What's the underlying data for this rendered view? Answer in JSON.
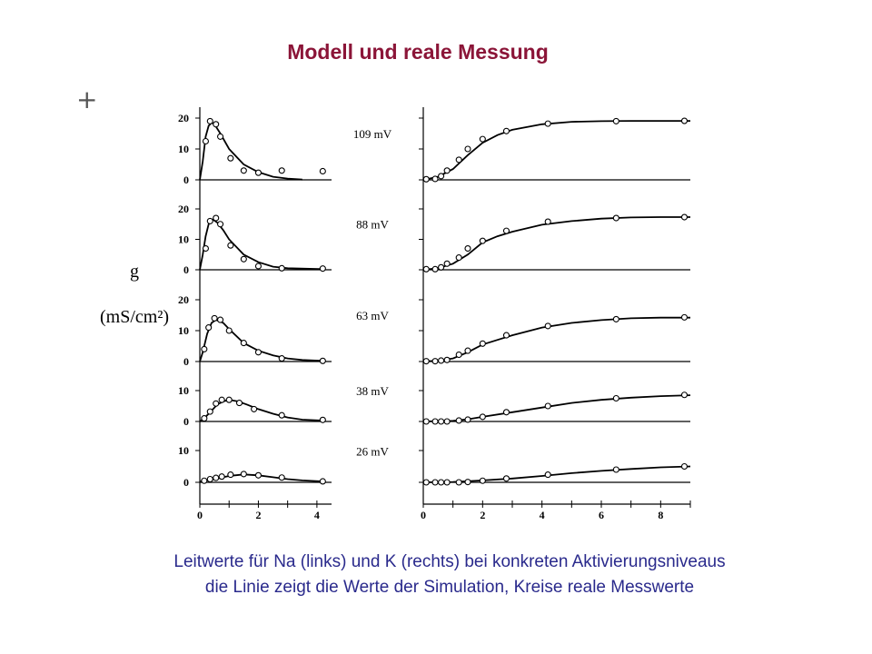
{
  "title": "Modell und reale Messung",
  "plus_marker": "+",
  "caption": {
    "line1": "Leitwerte für Na (links) und K (rechts) bei konkreten Aktivierungsniveaus",
    "line2": "die Linie zeigt die Werte der Simulation, Kreise reale Messwerte"
  },
  "chart_data": {
    "type": "line",
    "ylabel_line1": "g",
    "ylabel_line2": "(mS/cm²)",
    "left_panel": {
      "x_ticks": [
        "0",
        "2",
        "4"
      ],
      "xlim": [
        0,
        4.5
      ]
    },
    "right_panel": {
      "x_ticks": [
        "0",
        "2",
        "4",
        "6",
        "8"
      ],
      "xlim": [
        0,
        9
      ]
    },
    "rows": [
      {
        "voltage_label": "109 mV",
        "y_ticks": [
          "20",
          "10",
          "0"
        ],
        "ylim": [
          0,
          20
        ],
        "na_curve": [
          [
            0,
            0
          ],
          [
            0.1,
            6
          ],
          [
            0.2,
            14
          ],
          [
            0.3,
            17.5
          ],
          [
            0.4,
            18.5
          ],
          [
            0.5,
            18
          ],
          [
            0.7,
            15
          ],
          [
            1,
            10
          ],
          [
            1.5,
            5
          ],
          [
            2,
            2.5
          ],
          [
            2.5,
            1
          ],
          [
            3,
            0.4
          ],
          [
            3.5,
            0.1
          ]
        ],
        "na_points": [
          [
            0.2,
            12.5
          ],
          [
            0.35,
            19
          ],
          [
            0.55,
            18
          ],
          [
            0.7,
            14
          ],
          [
            1.05,
            7
          ],
          [
            1.5,
            3
          ],
          [
            2,
            2.3
          ],
          [
            2.8,
            3
          ],
          [
            4.2,
            2.8
          ]
        ],
        "k_curve": [
          [
            0,
            0
          ],
          [
            0.5,
            1
          ],
          [
            1,
            3.5
          ],
          [
            1.5,
            8
          ],
          [
            2,
            12
          ],
          [
            2.5,
            14.5
          ],
          [
            3,
            16.2
          ],
          [
            4,
            18
          ],
          [
            5,
            18.8
          ],
          [
            6,
            19
          ],
          [
            7,
            19.1
          ],
          [
            8,
            19.1
          ],
          [
            9,
            19.1
          ]
        ],
        "k_points": [
          [
            0.1,
            0.2
          ],
          [
            0.4,
            0.3
          ],
          [
            0.6,
            1.2
          ],
          [
            0.8,
            3
          ],
          [
            1.2,
            6.5
          ],
          [
            1.5,
            10
          ],
          [
            2,
            13.2
          ],
          [
            2.8,
            15.8
          ],
          [
            4.2,
            18.2
          ],
          [
            6.5,
            19
          ],
          [
            8.8,
            19.1
          ]
        ]
      },
      {
        "voltage_label": "88 mV",
        "y_ticks": [
          "20",
          "10",
          "0"
        ],
        "ylim": [
          0,
          20
        ],
        "na_curve": [
          [
            0,
            0
          ],
          [
            0.1,
            5
          ],
          [
            0.2,
            11
          ],
          [
            0.3,
            15
          ],
          [
            0.45,
            16.5
          ],
          [
            0.6,
            15.5
          ],
          [
            0.8,
            13
          ],
          [
            1,
            10
          ],
          [
            1.5,
            5
          ],
          [
            2,
            2.5
          ],
          [
            2.5,
            1
          ],
          [
            3,
            0.5
          ],
          [
            4.2,
            0.2
          ]
        ],
        "na_points": [
          [
            0.2,
            7
          ],
          [
            0.35,
            16
          ],
          [
            0.55,
            17
          ],
          [
            0.7,
            15
          ],
          [
            1.05,
            8
          ],
          [
            1.5,
            3.5
          ],
          [
            2,
            1.2
          ],
          [
            2.8,
            0.5
          ],
          [
            4.2,
            0.4
          ]
        ],
        "k_curve": [
          [
            0,
            0
          ],
          [
            0.5,
            0.5
          ],
          [
            1,
            2
          ],
          [
            1.5,
            5
          ],
          [
            2,
            9
          ],
          [
            2.5,
            11
          ],
          [
            3,
            12.5
          ],
          [
            4,
            14.8
          ],
          [
            5,
            16
          ],
          [
            6,
            16.8
          ],
          [
            7,
            17.2
          ],
          [
            8,
            17.3
          ],
          [
            9,
            17.3
          ]
        ],
        "k_points": [
          [
            0.1,
            0.2
          ],
          [
            0.4,
            0.2
          ],
          [
            0.6,
            0.8
          ],
          [
            0.8,
            2
          ],
          [
            1.2,
            4
          ],
          [
            1.5,
            7
          ],
          [
            2,
            9.5
          ],
          [
            2.8,
            12.8
          ],
          [
            4.2,
            15.8
          ],
          [
            6.5,
            17
          ],
          [
            8.8,
            17.3
          ]
        ]
      },
      {
        "voltage_label": "63 mV",
        "y_ticks": [
          "20",
          "10",
          "0"
        ],
        "ylim": [
          0,
          20
        ],
        "na_curve": [
          [
            0,
            0
          ],
          [
            0.1,
            3
          ],
          [
            0.25,
            9
          ],
          [
            0.4,
            12.5
          ],
          [
            0.55,
            13.5
          ],
          [
            0.8,
            12.5
          ],
          [
            1,
            10.5
          ],
          [
            1.5,
            6
          ],
          [
            2,
            3.5
          ],
          [
            2.5,
            2
          ],
          [
            3,
            1
          ],
          [
            3.5,
            0.5
          ],
          [
            4.2,
            0.2
          ]
        ],
        "na_points": [
          [
            0.15,
            4
          ],
          [
            0.3,
            11
          ],
          [
            0.5,
            14
          ],
          [
            0.7,
            13.5
          ],
          [
            1,
            10
          ],
          [
            1.5,
            6
          ],
          [
            2,
            3
          ],
          [
            2.8,
            1
          ],
          [
            4.2,
            0.2
          ]
        ],
        "k_curve": [
          [
            0,
            0
          ],
          [
            0.5,
            0.3
          ],
          [
            1,
            1
          ],
          [
            1.5,
            3
          ],
          [
            2,
            5.5
          ],
          [
            2.5,
            7
          ],
          [
            3,
            8.5
          ],
          [
            4,
            11
          ],
          [
            5,
            12.5
          ],
          [
            6,
            13.4
          ],
          [
            7,
            14
          ],
          [
            8,
            14.2
          ],
          [
            9,
            14.2
          ]
        ],
        "k_points": [
          [
            0.1,
            0.1
          ],
          [
            0.4,
            0.1
          ],
          [
            0.6,
            0.3
          ],
          [
            0.8,
            0.5
          ],
          [
            1.2,
            2.2
          ],
          [
            1.5,
            3.5
          ],
          [
            2,
            5.8
          ],
          [
            2.8,
            8.5
          ],
          [
            4.2,
            11.5
          ],
          [
            6.5,
            13.7
          ],
          [
            8.8,
            14.3
          ]
        ]
      },
      {
        "voltage_label": "38 mV",
        "y_ticks": [
          "10",
          "0"
        ],
        "ylim": [
          0,
          10
        ],
        "na_curve": [
          [
            0,
            0
          ],
          [
            0.2,
            1.5
          ],
          [
            0.4,
            3.5
          ],
          [
            0.6,
            5.5
          ],
          [
            0.8,
            6.5
          ],
          [
            1,
            7
          ],
          [
            1.3,
            6.5
          ],
          [
            1.6,
            5.5
          ],
          [
            2,
            4
          ],
          [
            2.5,
            2.5
          ],
          [
            3,
            1.3
          ],
          [
            3.5,
            0.6
          ],
          [
            4.2,
            0.3
          ]
        ],
        "na_points": [
          [
            0.15,
            1
          ],
          [
            0.35,
            3.2
          ],
          [
            0.55,
            5.8
          ],
          [
            0.75,
            7
          ],
          [
            1,
            7
          ],
          [
            1.35,
            6
          ],
          [
            1.85,
            4
          ],
          [
            2.8,
            2
          ],
          [
            4.2,
            0.5
          ]
        ],
        "k_curve": [
          [
            0,
            0
          ],
          [
            1,
            0.2
          ],
          [
            1.5,
            0.7
          ],
          [
            2,
            1.5
          ],
          [
            3,
            3
          ],
          [
            4,
            4.5
          ],
          [
            5,
            6
          ],
          [
            6,
            7
          ],
          [
            7,
            7.7
          ],
          [
            8,
            8.2
          ],
          [
            9,
            8.5
          ]
        ],
        "k_points": [
          [
            0.1,
            0
          ],
          [
            0.4,
            0
          ],
          [
            0.6,
            0
          ],
          [
            0.8,
            0
          ],
          [
            1.2,
            0.3
          ],
          [
            1.5,
            0.6
          ],
          [
            2,
            1.5
          ],
          [
            2.8,
            3
          ],
          [
            4.2,
            5
          ],
          [
            6.5,
            7.5
          ],
          [
            8.8,
            8.6
          ]
        ]
      },
      {
        "voltage_label": "26 mV",
        "y_ticks": [
          "10",
          "0"
        ],
        "ylim": [
          0,
          10
        ],
        "na_curve": [
          [
            0,
            0.2
          ],
          [
            0.5,
            1
          ],
          [
            1,
            2
          ],
          [
            1.5,
            2.5
          ],
          [
            2,
            2.2
          ],
          [
            2.5,
            1.6
          ],
          [
            3,
            1
          ],
          [
            3.5,
            0.6
          ],
          [
            4.2,
            0.3
          ]
        ],
        "na_points": [
          [
            0.15,
            0.5
          ],
          [
            0.35,
            1
          ],
          [
            0.55,
            1.4
          ],
          [
            0.75,
            1.8
          ],
          [
            1.05,
            2.4
          ],
          [
            1.5,
            2.6
          ],
          [
            2,
            2.2
          ],
          [
            2.8,
            1.5
          ],
          [
            4.2,
            0.3
          ]
        ],
        "k_curve": [
          [
            0,
            0
          ],
          [
            1,
            0.1
          ],
          [
            2,
            0.6
          ],
          [
            3,
            1.2
          ],
          [
            4,
            2
          ],
          [
            5,
            2.9
          ],
          [
            6,
            3.6
          ],
          [
            7,
            4.2
          ],
          [
            8,
            4.7
          ],
          [
            9,
            5
          ]
        ],
        "k_points": [
          [
            0.1,
            0
          ],
          [
            0.4,
            0
          ],
          [
            0.6,
            0
          ],
          [
            0.8,
            0
          ],
          [
            1.2,
            0
          ],
          [
            1.5,
            0.1
          ],
          [
            2,
            0.5
          ],
          [
            2.8,
            1.2
          ],
          [
            4.2,
            2.4
          ],
          [
            6.5,
            4
          ],
          [
            8.8,
            5
          ]
        ]
      }
    ]
  }
}
